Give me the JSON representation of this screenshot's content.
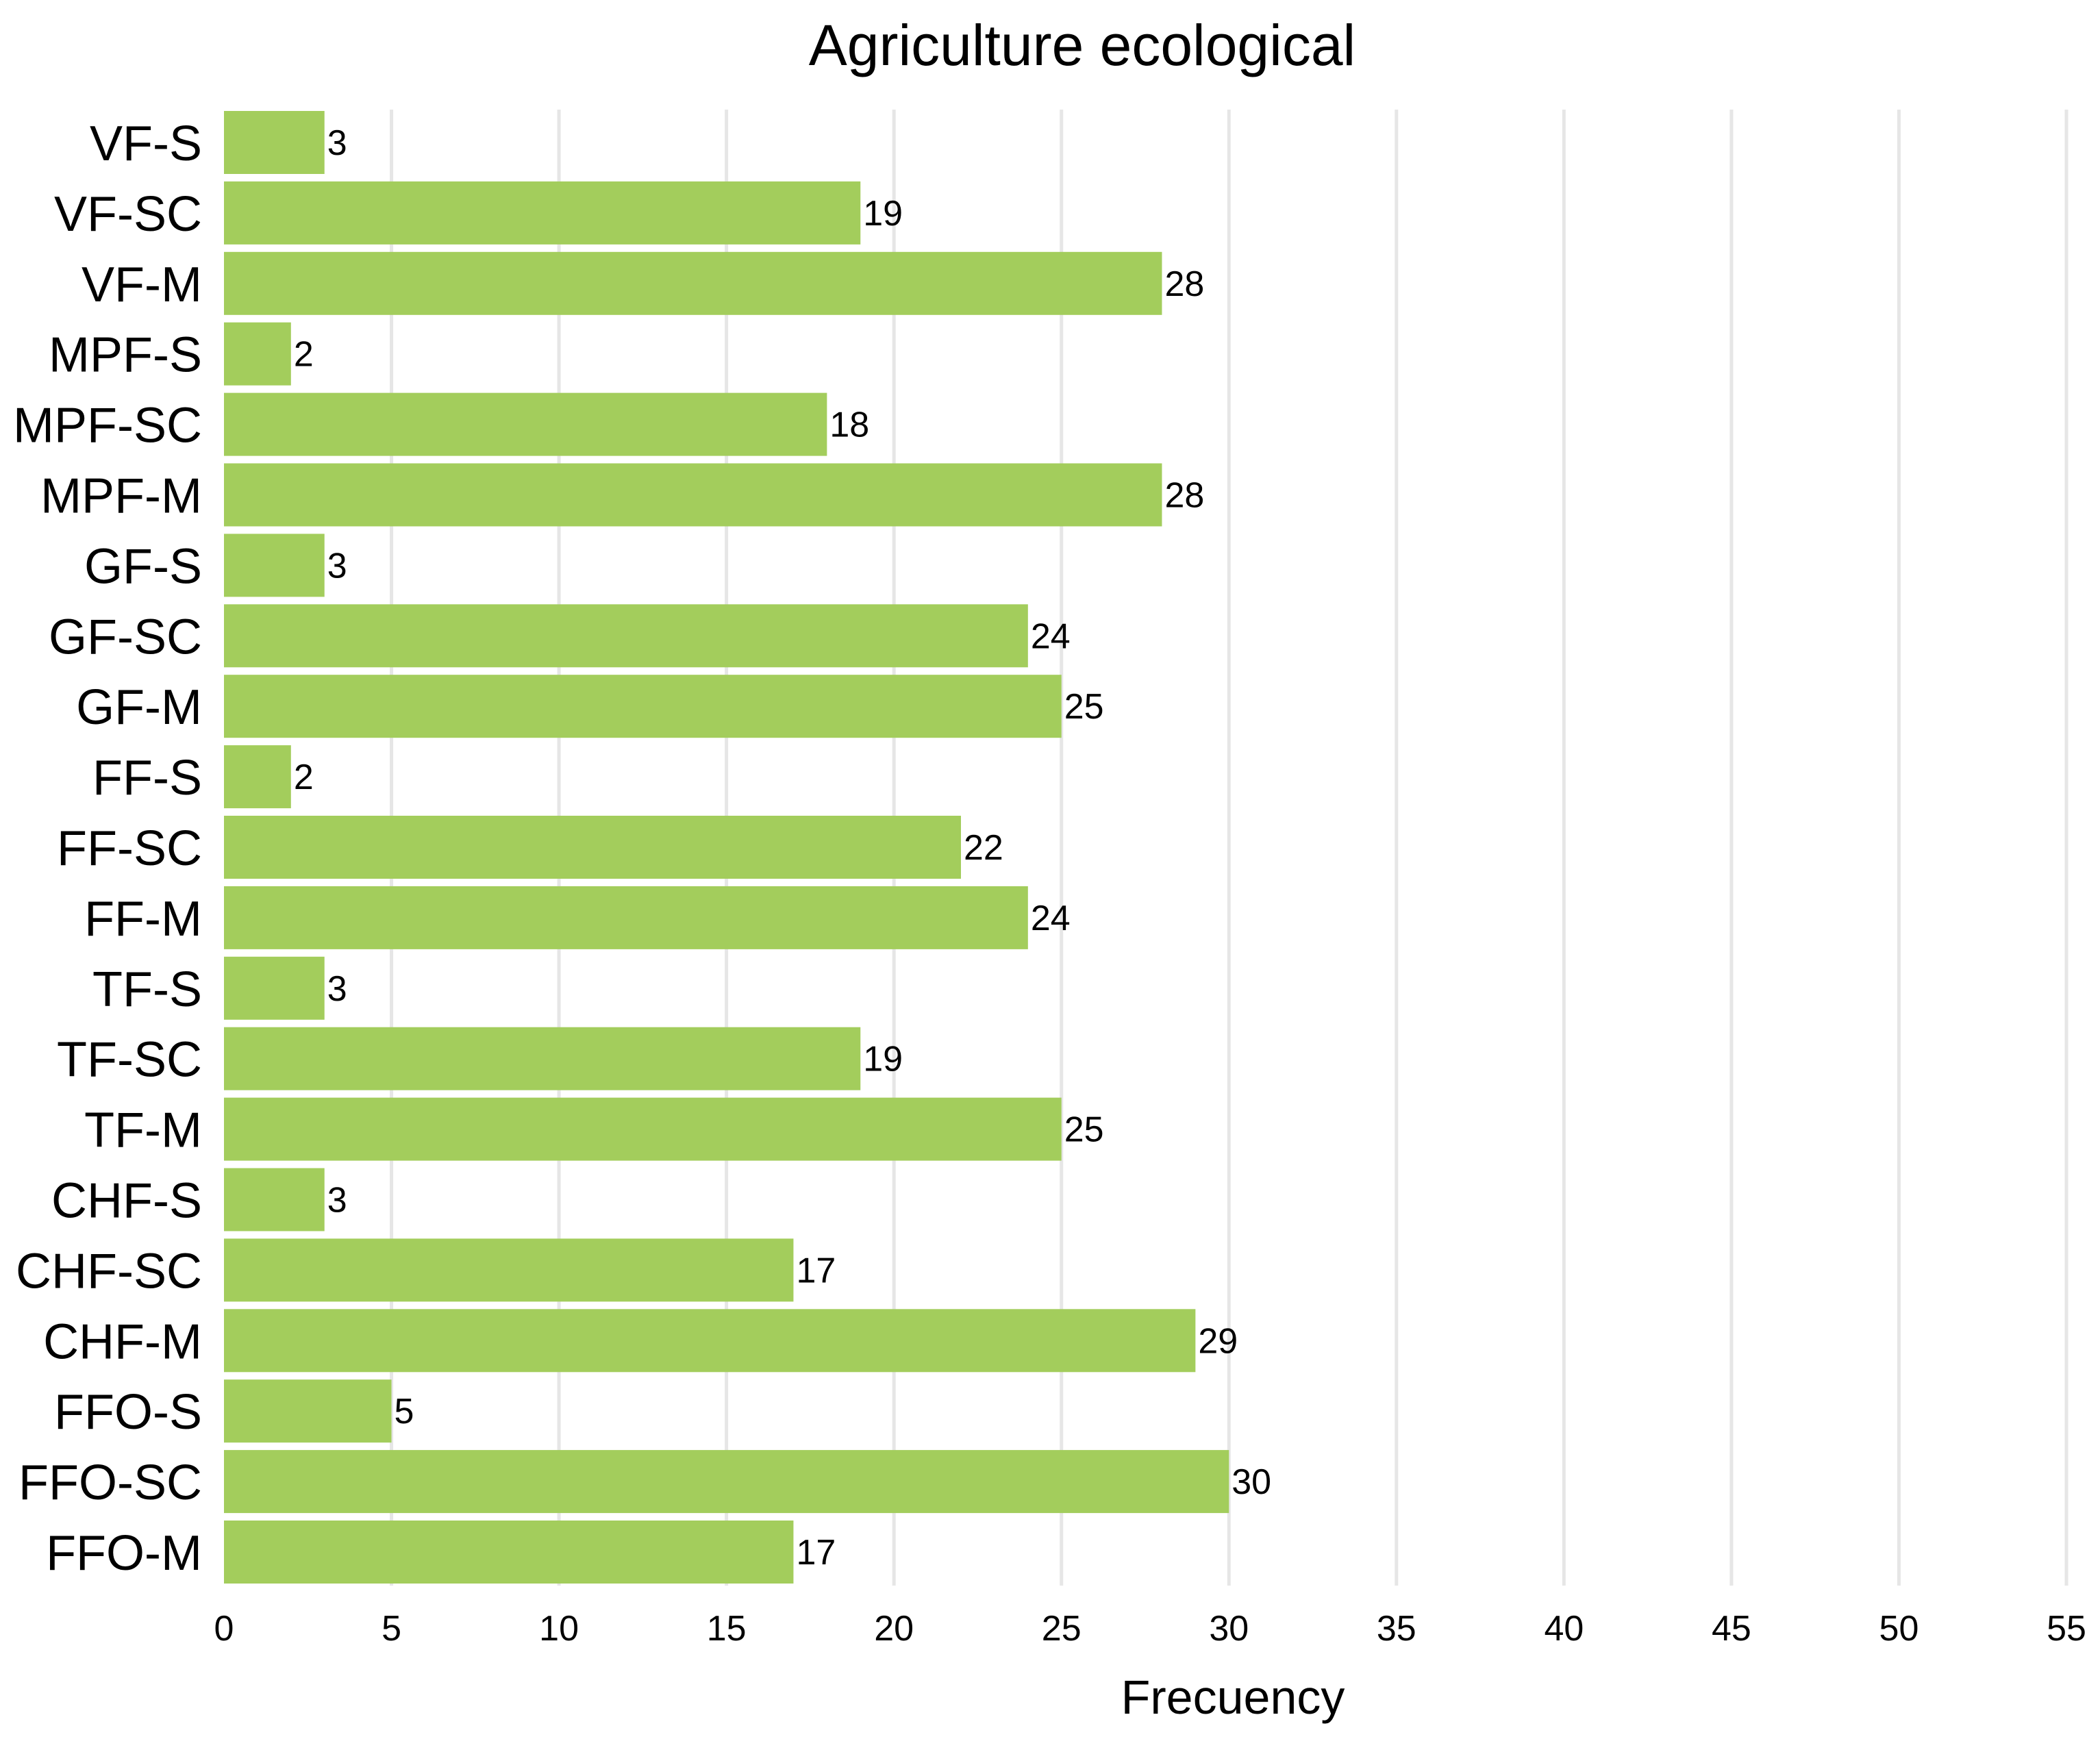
{
  "chart_data": {
    "type": "bar",
    "orientation": "horizontal",
    "title": "Agriculture ecological",
    "xlabel": "Frecuency",
    "ylabel": "",
    "xlim": [
      0,
      55
    ],
    "xticks": [
      0,
      5,
      10,
      15,
      20,
      25,
      30,
      35,
      40,
      45,
      50,
      55
    ],
    "grid": true,
    "bar_color": "#a3cd5c",
    "gridline_color": "#e6e6e6",
    "categories": [
      "VF-S",
      "VF-SC",
      "VF-M",
      "MPF-S",
      "MPF-SC",
      "MPF-M",
      "GF-S",
      "GF-SC",
      "GF-M",
      "FF-S",
      "FF-SC",
      "FF-M",
      "TF-S",
      "TF-SC",
      "TF-M",
      "CHF-S",
      "CHF-SC",
      "CHF-M",
      "FFO-S",
      "FFO-SC",
      "FFO-M"
    ],
    "values": [
      3,
      19,
      28,
      2,
      18,
      28,
      3,
      24,
      25,
      2,
      22,
      24,
      3,
      19,
      25,
      3,
      17,
      29,
      5,
      30,
      17
    ]
  }
}
